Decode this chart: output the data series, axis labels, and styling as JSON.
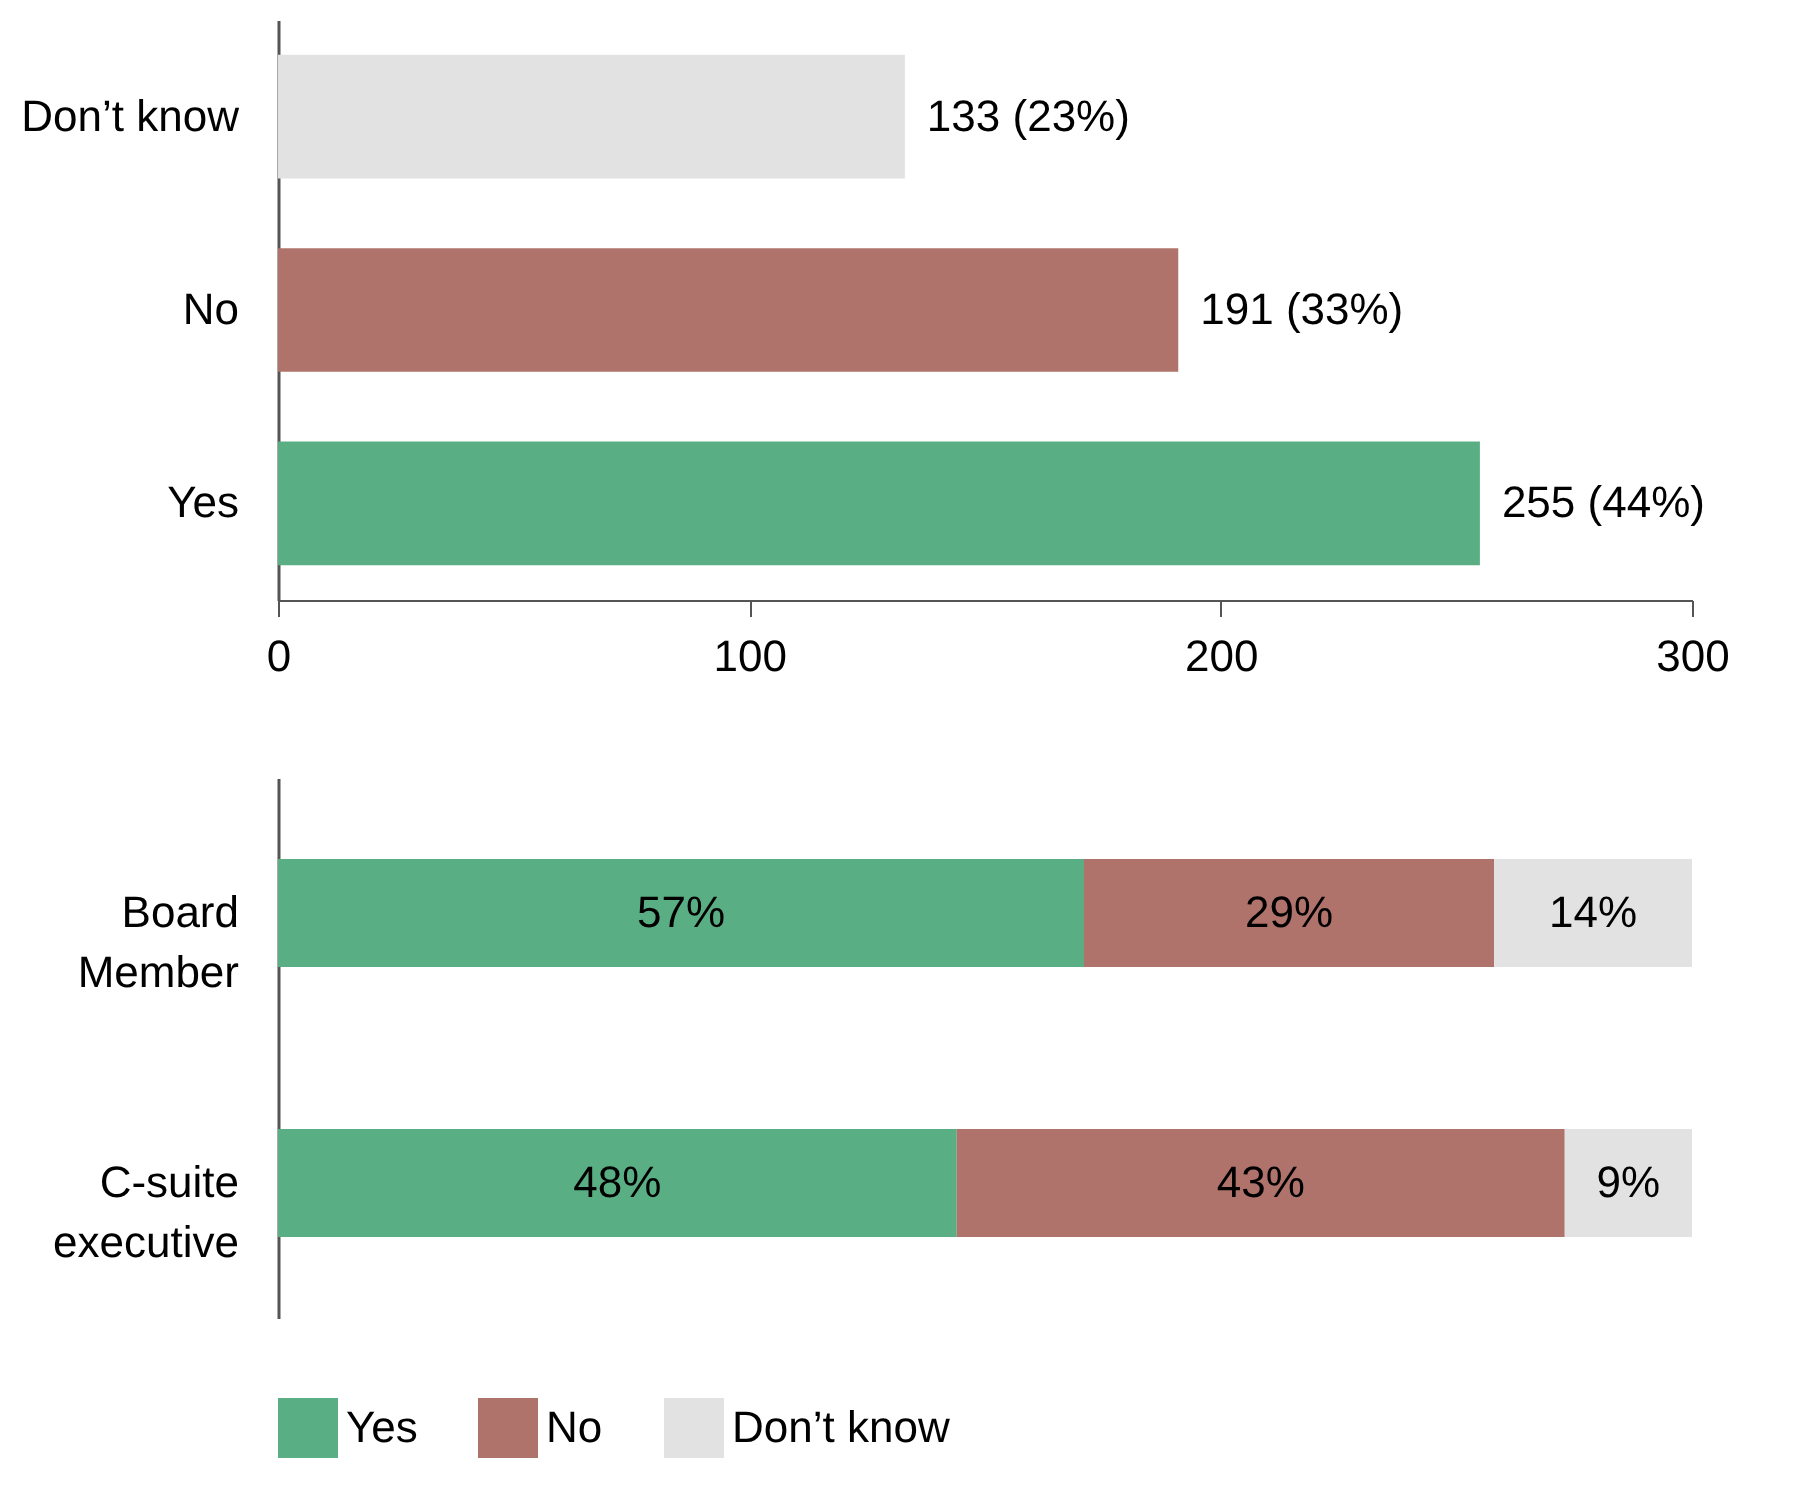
{
  "chart_data": [
    {
      "type": "bar",
      "orientation": "horizontal",
      "categories": [
        "Don’t know",
        "No",
        "Yes"
      ],
      "values": [
        133,
        191,
        255
      ],
      "colors": [
        "#e2e2e2",
        "#b0736b",
        "#5aae84"
      ],
      "value_labels": [
        "133 (23%)",
        "191 (33%)",
        "255 (44%)"
      ],
      "xlim": [
        0,
        300
      ],
      "xticks": [
        0,
        100,
        200,
        300
      ]
    },
    {
      "type": "bar",
      "orientation": "horizontal",
      "stacked": true,
      "categories": [
        "Board Member",
        "C-suite executive"
      ],
      "xlim": [
        0,
        100
      ],
      "tick_labels": "y",
      "legend": "bottom",
      "series": [
        {
          "name": "Yes",
          "color": "#5aae84",
          "values": [
            57,
            48
          ],
          "value_labels": [
            "57%",
            "48%"
          ]
        },
        {
          "name": "No",
          "color": "#b0736b",
          "values": [
            29,
            43
          ],
          "value_labels": [
            "29%",
            "43%"
          ]
        },
        {
          "name": "Don’t know",
          "color": "#e2e2e2",
          "values": [
            14,
            9
          ],
          "value_labels": [
            "14%",
            "9%"
          ]
        }
      ]
    }
  ]
}
